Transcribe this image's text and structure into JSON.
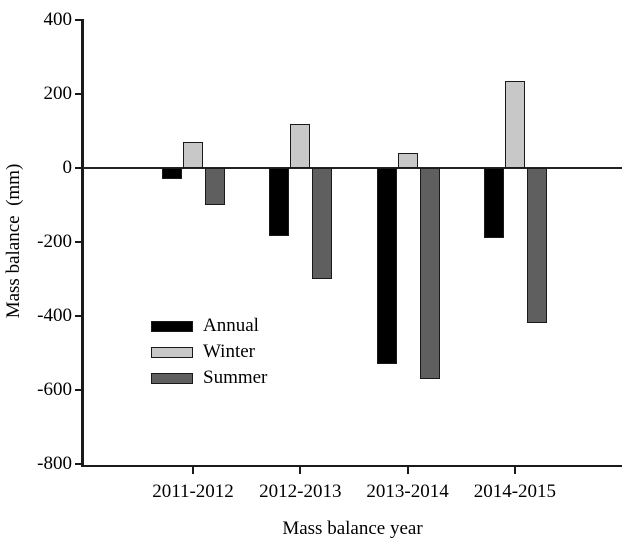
{
  "figure": {
    "background": "#ffffff",
    "axis_color": "#000000",
    "text_color": "#000000"
  },
  "chart_data": {
    "type": "bar",
    "title": "",
    "xlabel": "Mass balance year",
    "ylabel": "Mass balance  (mm)",
    "categories": [
      "2011-2012",
      "2012-2013",
      "2013-2014",
      "2014-2015"
    ],
    "series": [
      {
        "name": "Annual",
        "color": "#000000",
        "values": [
          -30,
          -185,
          -530,
          -190
        ]
      },
      {
        "name": "Winter",
        "color": "#c8c8c8",
        "values": [
          70,
          120,
          40,
          235
        ]
      },
      {
        "name": "Summer",
        "color": "#5f5f5f",
        "values": [
          -100,
          -300,
          -570,
          -420
        ]
      }
    ],
    "ylim": [
      -800,
      400
    ],
    "yticks": [
      400,
      200,
      0,
      -200,
      -400,
      -600,
      -800
    ],
    "grid": false,
    "legend_position": "inside-lower-left",
    "bar_border_color": "#1a1a1a",
    "zero_line": true
  }
}
